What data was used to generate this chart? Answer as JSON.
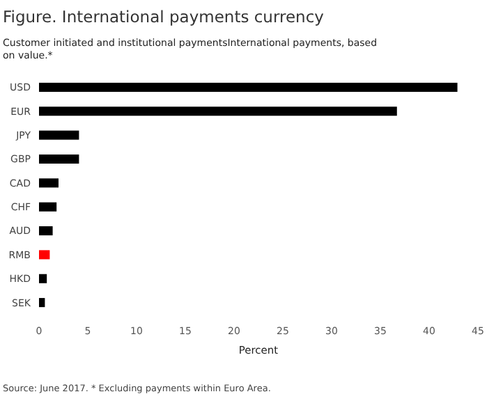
{
  "chart_data": {
    "type": "bar",
    "orientation": "horizontal",
    "title": "Figure. International payments currency",
    "subtitle": "Customer initiated and institutional paymentsInternational payments, based on value.*",
    "xlabel": "Percent",
    "categories": [
      "USD",
      "EUR",
      "JPY",
      "GBP",
      "CAD",
      "CHF",
      "AUD",
      "RMB",
      "HKD",
      "SEK"
    ],
    "values": [
      42.9,
      36.7,
      4.1,
      4.1,
      2,
      1.8,
      1.4,
      1.1,
      0.8,
      0.6
    ],
    "colors": [
      "#000000",
      "#000000",
      "#000000",
      "#000000",
      "#000000",
      "#000000",
      "#000000",
      "#ff0000",
      "#000000",
      "#000000"
    ],
    "xlim": [
      0,
      45
    ],
    "xticks": [
      0,
      5,
      10,
      15,
      20,
      25,
      30,
      35,
      40,
      45
    ],
    "grid": false,
    "annotations": [
      "Source: June 2017. * Excluding payments within Euro Area."
    ]
  }
}
